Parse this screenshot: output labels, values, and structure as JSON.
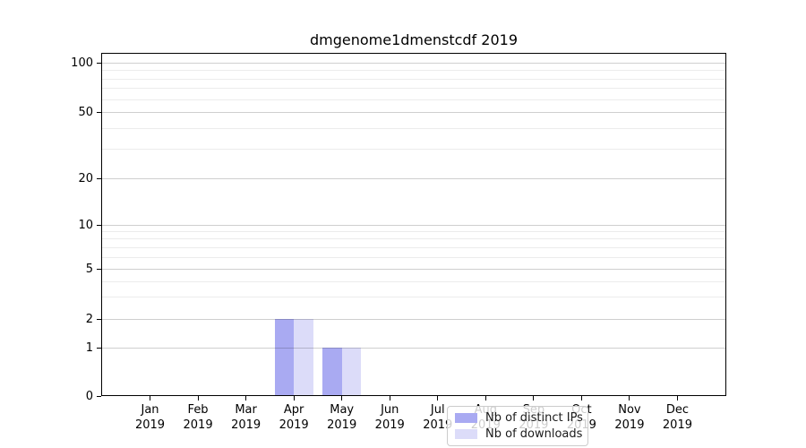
{
  "chart_data": {
    "type": "bar",
    "title": "dmgenome1dmenstcdf 2019",
    "categories": [
      "Jan",
      "Feb",
      "Mar",
      "Apr",
      "May",
      "Jun",
      "Jul",
      "Aug",
      "Sep",
      "Oct",
      "Nov",
      "Dec"
    ],
    "x_year_label": "2019",
    "series": [
      {
        "name": "Nb of distinct IPs",
        "color": "#a9aaf2",
        "values": [
          0,
          0,
          0,
          2,
          1,
          0,
          0,
          0,
          0,
          0,
          0,
          0
        ]
      },
      {
        "name": "Nb of downloads",
        "color": "#dcdcf9",
        "values": [
          0,
          0,
          0,
          2,
          1,
          0,
          0,
          0,
          0,
          0,
          0,
          0
        ]
      }
    ],
    "y_scale": "quasi-log (log10(1+y))",
    "y_ticks": [
      0,
      1,
      2,
      5,
      10,
      20,
      50,
      100
    ],
    "y_minor_gridlines": [
      3,
      4,
      6,
      7,
      8,
      9,
      30,
      40,
      60,
      70,
      80,
      90
    ],
    "ylim": [
      0,
      115
    ],
    "grid": true,
    "legend": {
      "position": "lower center-right, inside plot",
      "items": [
        "Nb of distinct IPs",
        "Nb of downloads"
      ]
    },
    "bar_group_layout": "two bars per month, side by side"
  }
}
